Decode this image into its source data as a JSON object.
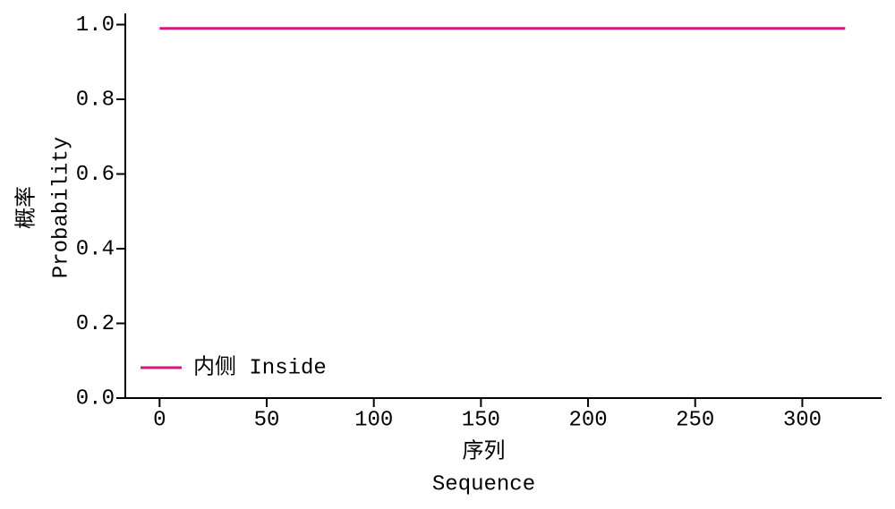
{
  "chart_data": {
    "type": "line",
    "y_label": [
      "概率",
      "Probability"
    ],
    "x_label": [
      "序列",
      "Sequence"
    ],
    "x": [
      0,
      50,
      100,
      150,
      200,
      250,
      300,
      320
    ],
    "series": [
      {
        "name": "内侧 Inside",
        "color": "#d6177f",
        "values": [
          0.99,
          0.99,
          0.99,
          0.99,
          0.99,
          0.99,
          0.99,
          0.99
        ]
      }
    ],
    "xlim": [
      -16,
      337
    ],
    "xticks": [
      0,
      50,
      100,
      150,
      200,
      250,
      300
    ],
    "ylim": [
      0,
      1.03
    ],
    "yticks": [
      {
        "value": 0,
        "label": "0.0"
      },
      0.2,
      0.4,
      0.6,
      0.8,
      {
        "value": 1,
        "label": "1.0"
      }
    ],
    "grid": false,
    "legend": "lower-left"
  }
}
